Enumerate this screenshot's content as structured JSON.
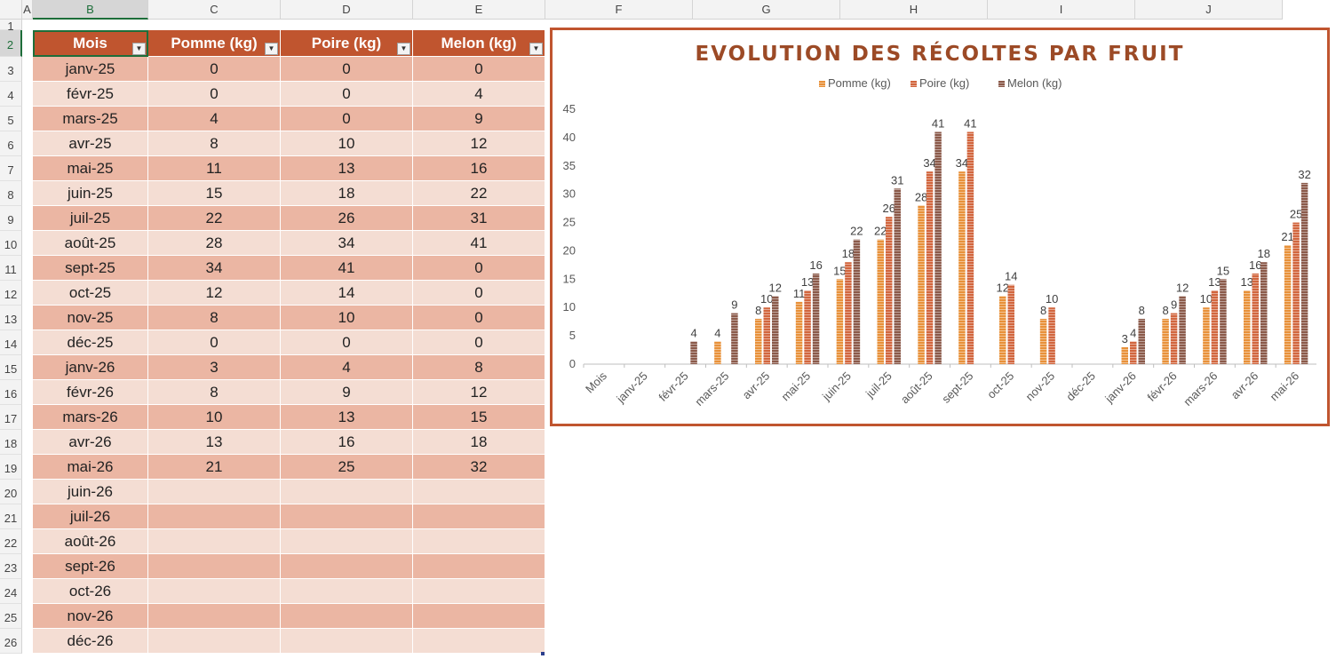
{
  "columns": [
    "A",
    "B",
    "C",
    "D",
    "E",
    "F",
    "G",
    "H",
    "I",
    "J"
  ],
  "selected_column": "B",
  "selected_row": 2,
  "rows": [
    "1",
    "2",
    "3",
    "4",
    "5",
    "6",
    "7",
    "8",
    "9",
    "10",
    "11",
    "12",
    "13",
    "14",
    "15",
    "16",
    "17",
    "18",
    "19",
    "20",
    "21",
    "22",
    "23",
    "24",
    "25",
    "26"
  ],
  "table": {
    "headers": [
      "Mois",
      "Pomme (kg)",
      "Poire (kg)",
      "Melon (kg)"
    ],
    "filter_icon": "dropdown-arrow-icon",
    "rows": [
      [
        "janv-25",
        "0",
        "0",
        "0"
      ],
      [
        "févr-25",
        "0",
        "0",
        "4"
      ],
      [
        "mars-25",
        "4",
        "0",
        "9"
      ],
      [
        "avr-25",
        "8",
        "10",
        "12"
      ],
      [
        "mai-25",
        "11",
        "13",
        "16"
      ],
      [
        "juin-25",
        "15",
        "18",
        "22"
      ],
      [
        "juil-25",
        "22",
        "26",
        "31"
      ],
      [
        "août-25",
        "28",
        "34",
        "41"
      ],
      [
        "sept-25",
        "34",
        "41",
        "0"
      ],
      [
        "oct-25",
        "12",
        "14",
        "0"
      ],
      [
        "nov-25",
        "8",
        "10",
        "0"
      ],
      [
        "déc-25",
        "0",
        "0",
        "0"
      ],
      [
        "janv-26",
        "3",
        "4",
        "8"
      ],
      [
        "févr-26",
        "8",
        "9",
        "12"
      ],
      [
        "mars-26",
        "10",
        "13",
        "15"
      ],
      [
        "avr-26",
        "13",
        "16",
        "18"
      ],
      [
        "mai-26",
        "21",
        "25",
        "32"
      ],
      [
        "juin-26",
        "",
        "",
        ""
      ],
      [
        "juil-26",
        "",
        "",
        ""
      ],
      [
        "août-26",
        "",
        "",
        ""
      ],
      [
        "sept-26",
        "",
        "",
        ""
      ],
      [
        "oct-26",
        "",
        "",
        ""
      ],
      [
        "nov-26",
        "",
        "",
        ""
      ],
      [
        "déc-26",
        "",
        "",
        ""
      ]
    ]
  },
  "colors": {
    "header": "#c0552f",
    "row_odd": "#ebb6a3",
    "row_even": "#f4ddd3",
    "chart_border": "#c0552f",
    "title": "#9c4a26"
  },
  "chart_data": {
    "type": "bar",
    "title": "EVOLUTION DES RÉCOLTES PAR FRUIT",
    "xlabel": "",
    "ylabel": "",
    "ylim": [
      0,
      45
    ],
    "yticks": [
      "0",
      "5",
      "10",
      "15",
      "20",
      "25",
      "30",
      "35",
      "40",
      "45"
    ],
    "grid": false,
    "legend_position": "top",
    "categories": [
      "Mois",
      "janv-25",
      "févr-25",
      "mars-25",
      "avr-25",
      "mai-25",
      "juin-25",
      "juil-25",
      "août-25",
      "sept-25",
      "oct-25",
      "nov-25",
      "déc-25",
      "janv-26",
      "févr-26",
      "mars-26",
      "avr-26",
      "mai-26"
    ],
    "series": [
      {
        "name": "Pomme (kg)",
        "color": "#e8913a",
        "values": [
          0,
          0,
          0,
          4,
          8,
          11,
          15,
          22,
          28,
          34,
          12,
          8,
          0,
          3,
          8,
          10,
          13,
          21
        ]
      },
      {
        "name": "Poire (kg)",
        "color": "#d2663e",
        "values": [
          0,
          0,
          0,
          0,
          10,
          13,
          18,
          26,
          34,
          41,
          14,
          10,
          0,
          4,
          9,
          13,
          16,
          25
        ]
      },
      {
        "name": "Melon (kg)",
        "color": "#8b5a4a",
        "values": [
          0,
          0,
          4,
          9,
          12,
          16,
          22,
          31,
          41,
          0,
          0,
          0,
          0,
          8,
          12,
          15,
          18,
          32
        ]
      }
    ]
  }
}
